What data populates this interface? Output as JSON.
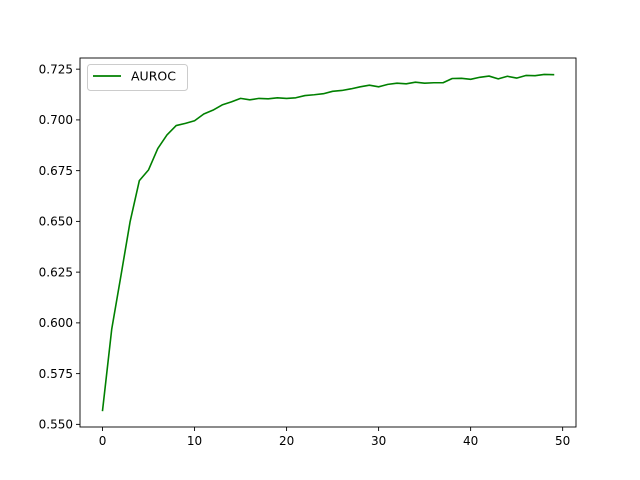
{
  "chart_data": {
    "type": "line",
    "title": "",
    "xlabel": "",
    "ylabel": "",
    "xlim": [
      -2.45,
      51.45
    ],
    "ylim": [
      0.5487,
      0.7305
    ],
    "xticks": [
      0,
      10,
      20,
      30,
      40,
      50
    ],
    "yticks": [
      0.55,
      0.575,
      0.6,
      0.625,
      0.65,
      0.675,
      0.7,
      0.725
    ],
    "grid": false,
    "legend": {
      "placement": "top-left"
    },
    "series": [
      {
        "name": "AUROC",
        "color": "#008000",
        "x": [
          0,
          1,
          2,
          3,
          4,
          5,
          6,
          7,
          8,
          9,
          10,
          11,
          12,
          13,
          14,
          15,
          16,
          17,
          18,
          19,
          20,
          21,
          22,
          23,
          24,
          25,
          26,
          27,
          28,
          29,
          30,
          31,
          32,
          33,
          34,
          35,
          36,
          37,
          38,
          39,
          40,
          41,
          42,
          43,
          44,
          45,
          46,
          47,
          48,
          49
        ],
        "y": [
          0.5569,
          0.597,
          0.6233,
          0.65,
          0.6701,
          0.6754,
          0.6859,
          0.6926,
          0.6972,
          0.6983,
          0.6996,
          0.7029,
          0.7048,
          0.7074,
          0.7089,
          0.7106,
          0.7099,
          0.7106,
          0.7104,
          0.7109,
          0.7106,
          0.7109,
          0.712,
          0.7124,
          0.7129,
          0.7141,
          0.7145,
          0.7153,
          0.7163,
          0.7171,
          0.7163,
          0.7175,
          0.7181,
          0.7178,
          0.7186,
          0.7181,
          0.7183,
          0.7183,
          0.7204,
          0.7205,
          0.72,
          0.721,
          0.7216,
          0.7202,
          0.7215,
          0.7206,
          0.7219,
          0.7218,
          0.7224,
          0.7223
        ]
      }
    ]
  }
}
